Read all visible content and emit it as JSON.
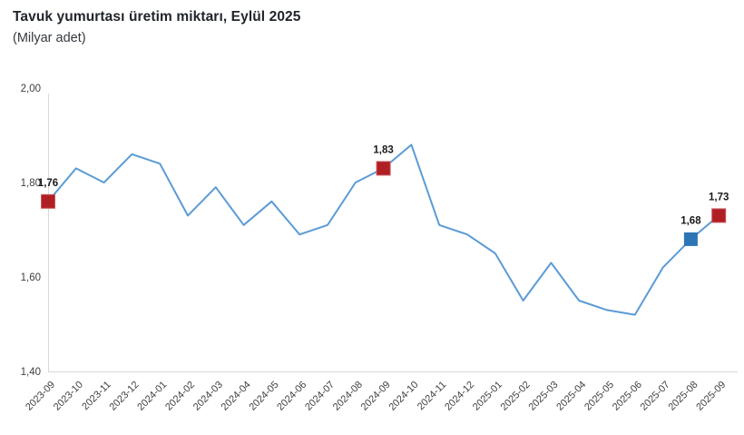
{
  "title": "Tavuk yumurtası üretim miktarı, Eylül 2025",
  "subtitle": "(Milyar adet)",
  "colors": {
    "line": "#5B9BD5",
    "marker_red": "#B01F24",
    "marker_red_edge": "#C7595E",
    "marker_blue": "#2E75B6",
    "axis": "#D9D9D9",
    "tick_text": "#404040",
    "value_label": "#1A1A1A"
  },
  "chart_data": {
    "type": "line",
    "title": "Tavuk yumurtası üretim miktarı, Eylül 2025",
    "subtitle": "(Milyar adet)",
    "categories": [
      "2023-09",
      "2023-10",
      "2023-11",
      "2023-12",
      "2024-01",
      "2024-02",
      "2024-03",
      "2024-04",
      "2024-05",
      "2024-06",
      "2024-07",
      "2024-08",
      "2024-09",
      "2024-10",
      "2024-11",
      "2024-12",
      "2025-01",
      "2025-02",
      "2025-03",
      "2025-04",
      "2025-05",
      "2025-06",
      "2025-07",
      "2025-08",
      "2025-09"
    ],
    "values": [
      1.76,
      1.83,
      1.8,
      1.86,
      1.84,
      1.73,
      1.79,
      1.71,
      1.76,
      1.69,
      1.71,
      1.8,
      1.83,
      1.88,
      1.71,
      1.69,
      1.65,
      1.55,
      1.63,
      1.55,
      1.53,
      1.52,
      1.62,
      1.68,
      1.73
    ],
    "ylim": [
      1.4,
      2.0
    ],
    "yticks": [
      {
        "value": 2.0,
        "label": "2,00"
      },
      {
        "value": 1.8,
        "label": "1,80"
      },
      {
        "value": 1.6,
        "label": "1,60"
      },
      {
        "value": 1.4,
        "label": "1,40"
      }
    ],
    "grid": "off",
    "legend": "none",
    "x_label_rotation": -45,
    "annotations": [
      {
        "category": "2023-09",
        "index": 0,
        "value": 1.76,
        "label": "1,76",
        "marker": "red-square"
      },
      {
        "category": "2024-09",
        "index": 12,
        "value": 1.83,
        "label": "1,83",
        "marker": "red-square"
      },
      {
        "category": "2025-08",
        "index": 23,
        "value": 1.68,
        "label": "1,68",
        "marker": "blue-square"
      },
      {
        "category": "2025-09",
        "index": 24,
        "value": 1.73,
        "label": "1,73",
        "marker": "red-square"
      }
    ]
  }
}
